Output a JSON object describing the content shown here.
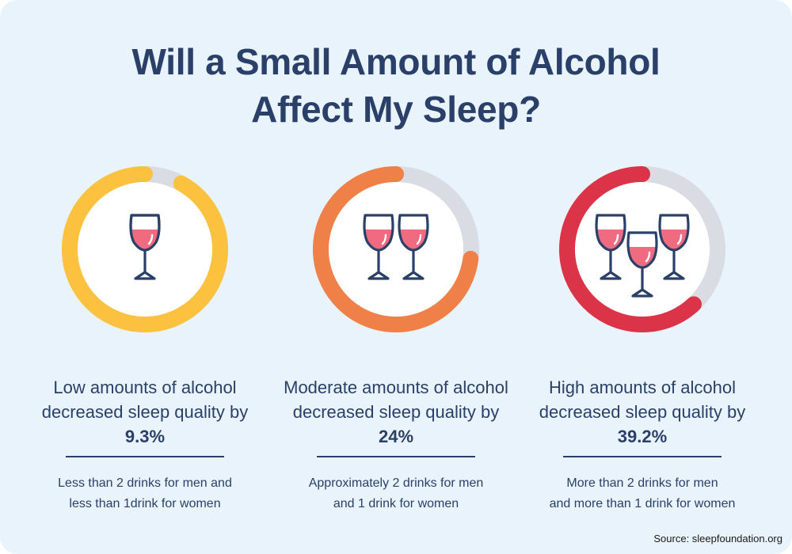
{
  "title": {
    "line1": "Will a Small Amount of Alcohol",
    "line2": "Affect My Sleep?"
  },
  "colors": {
    "background": "#e9f3fb",
    "text": "#2b4069",
    "track": "#d9dde3",
    "low": "#fcc13f",
    "moderate": "#ee8048",
    "high": "#db3448",
    "wine": "#f06a80",
    "glass_outline": "#2b4069"
  },
  "levels": [
    {
      "key": "low",
      "headline_text": "Low amounts of alcohol decreased sleep quality by ",
      "value_text": "9.3%",
      "desc_line1": "Less than 2 drinks for men and",
      "desc_line2": "less than 1drink for women",
      "ring_fraction": 0.92,
      "glass_count": 1,
      "icon": "wine-glass-icon"
    },
    {
      "key": "moderate",
      "headline_text": "Moderate amounts of alcohol decreased sleep quality by ",
      "value_text": "24%",
      "desc_line1": "Approximately 2 drinks for men",
      "desc_line2": "and 1 drink for women",
      "ring_fraction": 0.73,
      "glass_count": 2,
      "icon": "wine-glass-icon"
    },
    {
      "key": "high",
      "headline_text": "High amounts of alcohol decreased sleep quality by ",
      "value_text": "39.2%",
      "desc_line1": "More than 2 drinks for men",
      "desc_line2": "and more than 1 drink for women",
      "ring_fraction": 0.62,
      "glass_count": 3,
      "icon": "wine-glass-icon"
    }
  ],
  "source": "Source: sleepfoundation.org"
}
